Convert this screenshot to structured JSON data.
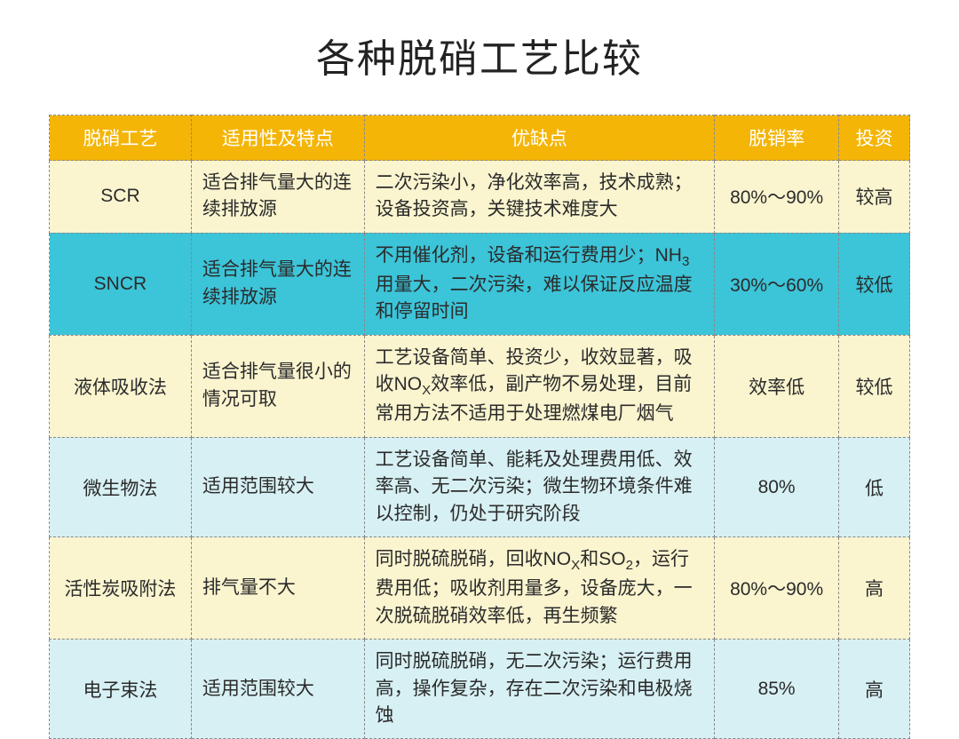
{
  "title": "各种脱硝工艺比较",
  "header_bg": "#f4b507",
  "header_color": "#ffffff",
  "row_colors": {
    "yellow": "#faf4cf",
    "cyan": "#3cc4d8",
    "ltblue": "#d7f0f3"
  },
  "columns": [
    {
      "label": "脱硝工艺",
      "class": "col0"
    },
    {
      "label": "适用性及特点",
      "class": "col1"
    },
    {
      "label": "优缺点",
      "class": "col2"
    },
    {
      "label": "脱销率",
      "class": "col3"
    },
    {
      "label": "投资",
      "class": "col4"
    }
  ],
  "rows": [
    {
      "bg": "yellow",
      "c0": "SCR",
      "c1": "适合排气量大的连续排放源",
      "c2": "二次污染小，净化效率高，技术成熟；设备投资高，关键技术难度大",
      "c3": "80%～90%",
      "c4": "较高"
    },
    {
      "bg": "cyan",
      "c0": "SNCR",
      "c1": "适合排气量大的连续排放源",
      "c2": "不用催化剂，设备和运行费用少；NH<span class='sub'>3</span>用量大，二次污染，难以保证反应温度和停留时间",
      "c3": "30%～60%",
      "c4": "较低"
    },
    {
      "bg": "yellow",
      "c0": "液体吸收法",
      "c1": "适合排气量很小的情况可取",
      "c2": "工艺设备简单、投资少，收效显著，吸收NO<span class='sub'>X</span>效率低，副产物不易处理，目前常用方法不适用于处理燃煤电厂烟气",
      "c3": "效率低",
      "c4": "较低"
    },
    {
      "bg": "ltblue",
      "c0": "微生物法",
      "c1": "适用范围较大",
      "c2": "工艺设备简单、能耗及处理费用低、效率高、无二次污染；微生物环境条件难以控制，仍处于研究阶段",
      "c3": "80%",
      "c4": "低"
    },
    {
      "bg": "yellow",
      "c0": "活性炭吸附法",
      "c1": "排气量不大",
      "c2": "同时脱硫脱硝，回收NO<span class='sub'>X</span>和SO<span class='sub'>2</span>，运行费用低；吸收剂用量多，设备庞大，一次脱硫脱硝效率低，再生频繁",
      "c3": "80%～90%",
      "c4": "高"
    },
    {
      "bg": "ltblue",
      "c0": "电子束法",
      "c1": "适用范围较大",
      "c2": "同时脱硫脱硝，无二次污染；运行费用高，操作复杂，存在二次污染和电极烧蚀",
      "c3": "85%",
      "c4": "高"
    }
  ]
}
